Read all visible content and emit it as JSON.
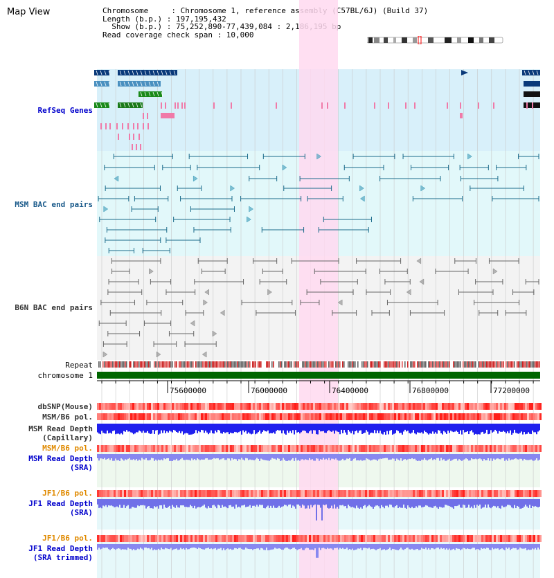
{
  "title": "Map View",
  "info": {
    "chromosome": "Chromosome     : Chromosome 1, reference assembly (C57BL/6J) (Build 37)",
    "length": "Length (b.p.) : 197,195,432",
    "show": "  Show (b.p.) : 75,252,890-77,439,084 : 2,186,195 bp",
    "span": "Read coverage check span : 10,000"
  },
  "labels": {
    "refseq": "RefSeq Genes",
    "msm_bac": "MSM BAC end pairs",
    "b6n_bac": "B6N BAC end pairs",
    "repeat": "Repeat",
    "chromosome": "chromosome 1",
    "dbsnp": "dbSNP(Mouse)",
    "msm_b6_pol": "MSM/B6 pol.",
    "msm_depth_cap_1": "MSM Read Depth",
    "msm_depth_cap_2": "(Capillary)",
    "msm_b6_pol_2": "MSM/B6 pol.",
    "msm_depth_sra_1": "MSM Read Depth",
    "msm_depth_sra_2": "(SRA)",
    "jf1_b6_pol": "JF1/B6 pol.",
    "jf1_depth_sra_1": "JF1 Read Depth",
    "jf1_depth_sra_2": "(SRA)",
    "jf1_b6_pol_2": "JF1/B6 pol.",
    "jf1_depth_trim_1": "JF1 Read Depth",
    "jf1_depth_trim_2": "(SRA trimmed)"
  },
  "axis": {
    "ticks": [
      "75600000",
      "76000000",
      "76400000",
      "76800000",
      "77200000"
    ]
  },
  "colors": {
    "refseq_label": "#0000cc",
    "msm_label": "#0000cc",
    "b6n_label": "#333333",
    "orange_label": "#e08a00",
    "highlight": "#ffd9f0",
    "chromosome_bar": "#006600"
  }
}
